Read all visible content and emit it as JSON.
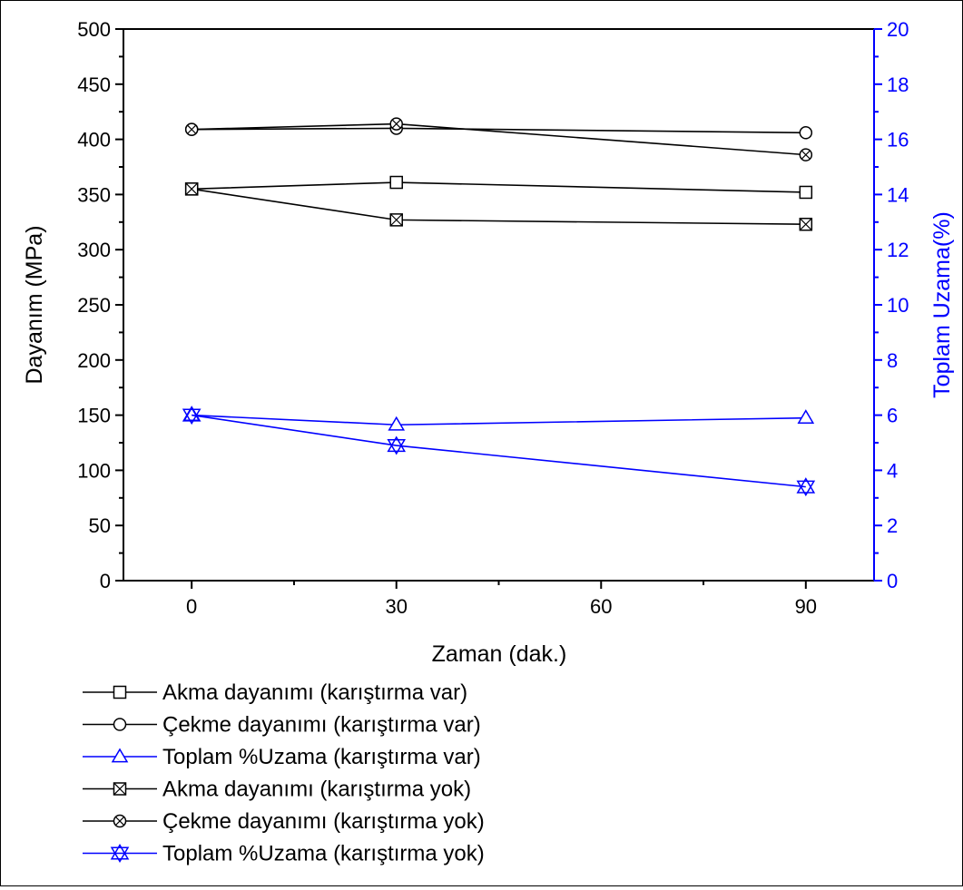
{
  "chart_data": {
    "type": "line",
    "title": "",
    "xlabel": "Zaman (dak.)",
    "ylabel": "Dayanım (MPa)",
    "y2label": "Toplam Uzama(%)",
    "xlim": [
      -10,
      100
    ],
    "ylim": [
      0,
      500
    ],
    "y2lim": [
      0,
      20
    ],
    "x_ticks": [
      0,
      30,
      60,
      90
    ],
    "x_tick_labels": [
      "0",
      "30",
      "60",
      "90"
    ],
    "y_ticks": [
      0,
      50,
      100,
      150,
      200,
      250,
      300,
      350,
      400,
      450,
      500
    ],
    "y_tick_labels": [
      "0",
      "50",
      "100",
      "150",
      "200",
      "250",
      "300",
      "350",
      "400",
      "450",
      "500"
    ],
    "y2_ticks": [
      0,
      2,
      4,
      6,
      8,
      10,
      12,
      14,
      16,
      18,
      20
    ],
    "y2_tick_labels": [
      "0",
      "2",
      "4",
      "6",
      "8",
      "10",
      "12",
      "14",
      "16",
      "18",
      "20"
    ],
    "grid": false,
    "legend_position": "bottom",
    "x": [
      0,
      30,
      90
    ],
    "series": [
      {
        "name": "Akma dayanımı (karıştırma var)",
        "axis": "left",
        "color": "#000000",
        "marker": "square",
        "values": [
          355,
          361,
          352
        ]
      },
      {
        "name": "Çekme dayanımı (karıştırma var)",
        "axis": "left",
        "color": "#000000",
        "marker": "circle",
        "values": [
          409,
          410,
          406
        ]
      },
      {
        "name": "Toplam %Uzama (karıştırma var)",
        "axis": "right",
        "color": "#0000ff",
        "marker": "triangle",
        "values": [
          6.0,
          5.65,
          5.9
        ]
      },
      {
        "name": "Akma dayanımı (karıştırma yok)",
        "axis": "left",
        "color": "#000000",
        "marker": "crossed-square",
        "values": [
          355,
          327,
          323
        ]
      },
      {
        "name": "Çekme dayanımı (karıştırma yok)",
        "axis": "left",
        "color": "#000000",
        "marker": "crossed-circle",
        "values": [
          409,
          414,
          386
        ]
      },
      {
        "name": "Toplam %Uzama (karıştırma yok)",
        "axis": "right",
        "color": "#0000ff",
        "marker": "star-triangle",
        "values": [
          6.0,
          4.9,
          3.4
        ]
      }
    ]
  }
}
